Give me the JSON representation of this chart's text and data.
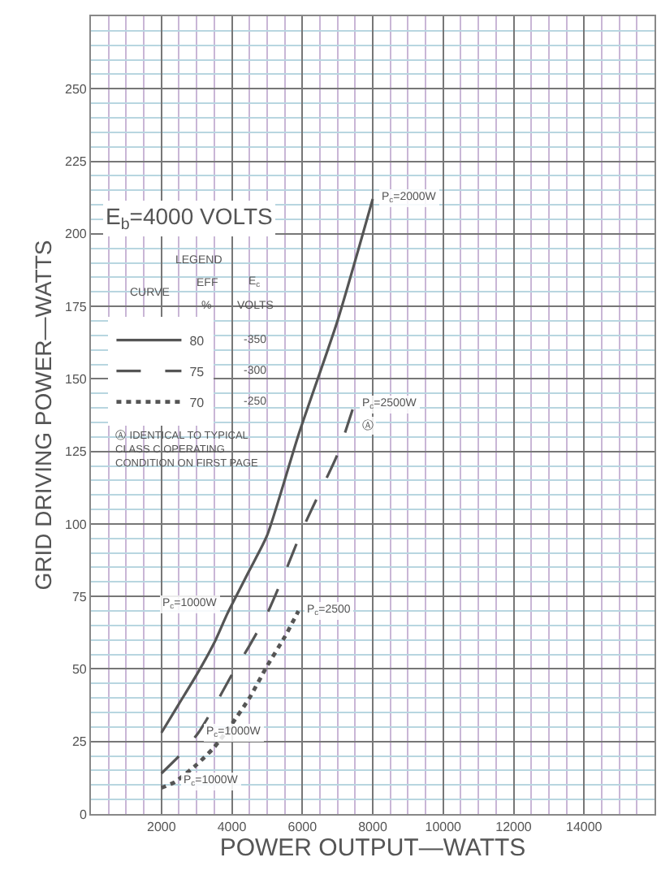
{
  "chart_data": {
    "type": "line",
    "title": "E$_{b}$=4000 VOLTS",
    "xlabel": "POWER OUTPUT—WATTS",
    "ylabel": "GRID DRIVING POWER—WATTS",
    "xlim": [
      0,
      16000
    ],
    "ylim": [
      0,
      275
    ],
    "xticks": [
      2000,
      4000,
      6000,
      8000,
      10000,
      12000,
      14000
    ],
    "yticks": [
      0,
      25,
      50,
      75,
      100,
      125,
      150,
      175,
      200,
      225,
      250
    ],
    "grid": true,
    "legend": "top left",
    "legend_title": "LEGEND",
    "marker": "none",
    "series": [
      {
        "name": "80",
        "color": "#555555",
        "line_style": "solid",
        "x": [
          2000,
          2500,
          3000,
          3500,
          3870,
          4500,
          5000,
          5900,
          7000,
          8000
        ],
        "values": [
          28,
          38,
          48,
          59,
          69,
          84,
          96,
          131,
          170,
          212
        ]
      },
      {
        "name": "75",
        "color": "#555555",
        "line_style": "dashed",
        "x": [
          2000,
          2500,
          3050,
          3500,
          4000,
          4500,
          5000,
          5500,
          6000,
          6500,
          7000,
          7470
        ],
        "values": [
          14,
          20,
          28,
          37,
          48,
          58,
          69,
          83,
          98,
          111,
          124,
          141
        ]
      },
      {
        "name": "70",
        "color": "#555555",
        "line_style": "dotted",
        "x": [
          2000,
          2380,
          3000,
          3500,
          4000,
          4500,
          5000,
          5500,
          5890
        ],
        "values": [
          9,
          11,
          17,
          23,
          31,
          40,
          51,
          61,
          70
        ]
      }
    ],
    "annotations": [
      "CURVE",
      "EFF",
      "%",
      "E$_{c}$",
      "VOLTS",
      "-350",
      "-300",
      "-250",
      "Ⓐ IDENTICAL TO TYPICAL CLASS C OPERATING CONDITION ON FIRST PAGE",
      {
        "text": "P$_{c}$=2000W",
        "x": 8000,
        "y": 212
      },
      {
        "text": "P$_{c}$=2500W",
        "x": 7470,
        "y": 141
      },
      {
        "text": "Ⓐ",
        "x": 7470,
        "y": 134
      },
      {
        "text": "P$_{c}$=1000W",
        "x": 3870,
        "y": 69
      },
      {
        "text": "P$_{c}$=2500",
        "x": 5890,
        "y": 70
      },
      {
        "text": "P$_{c}$=1000W",
        "x": 3050,
        "y": 28
      },
      {
        "text": "P$_{c}$=1000W",
        "x": 2380,
        "y": 11
      }
    ]
  }
}
